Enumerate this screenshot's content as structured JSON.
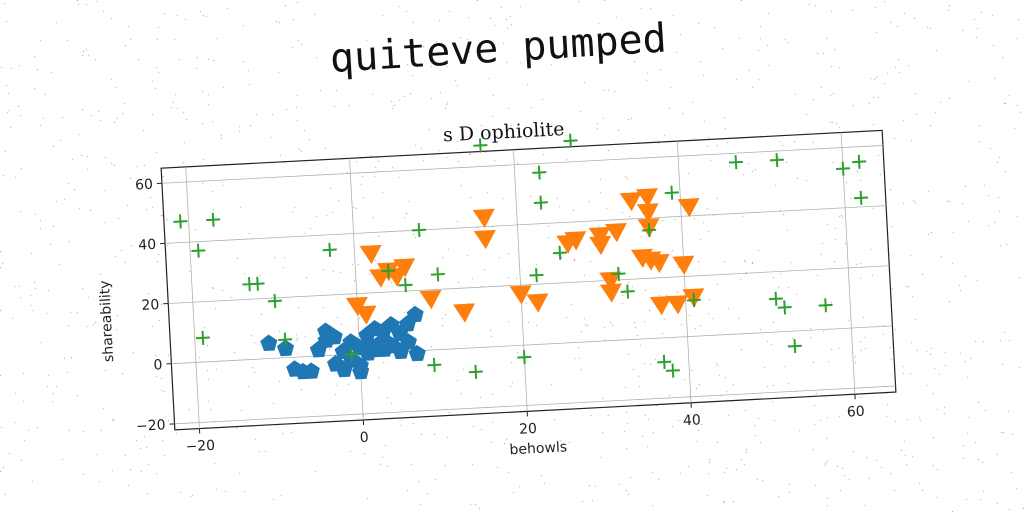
{
  "figure": {
    "suptitle": "quiteve pumped"
  },
  "colors": {
    "blue": "#1f77b4",
    "orange": "#ff7f0e",
    "green": "#2ca02c",
    "grid": "#b0b0b0",
    "axis": "#222222"
  },
  "chart_data": {
    "type": "scatter",
    "title": "s D ophiolite",
    "xlabel": "behowls",
    "ylabel": "shareability",
    "xlim": [
      -23,
      65
    ],
    "ylim": [
      -22,
      65
    ],
    "xticks": [
      -20,
      0,
      20,
      40,
      60
    ],
    "yticks": [
      -20,
      0,
      20,
      40,
      60
    ],
    "xtick_labels": [
      "−20",
      "0",
      "20",
      "40",
      "60"
    ],
    "ytick_labels": [
      "−20",
      "0",
      "20",
      "40",
      "60"
    ],
    "grid": true,
    "rotation_deg": -3,
    "series": [
      {
        "marker": "pentagon",
        "color": "#1f77b4",
        "points": [
          [
            -11,
            5
          ],
          [
            -9,
            3
          ],
          [
            -8,
            -4
          ],
          [
            -7,
            -5
          ],
          [
            -6,
            -5
          ],
          [
            -5,
            2
          ],
          [
            -4,
            5
          ],
          [
            -4,
            8
          ],
          [
            -3,
            6
          ],
          [
            -3,
            -3
          ],
          [
            -2,
            1
          ],
          [
            -1,
            -2
          ],
          [
            -1,
            4
          ],
          [
            0,
            -4
          ],
          [
            0,
            2
          ],
          [
            1,
            3
          ],
          [
            1,
            0
          ],
          [
            1,
            6
          ],
          [
            2,
            2
          ],
          [
            2,
            8
          ],
          [
            2,
            1
          ],
          [
            3,
            4
          ],
          [
            3,
            7
          ],
          [
            3,
            1
          ],
          [
            4,
            9
          ],
          [
            4,
            2
          ],
          [
            5,
            6
          ],
          [
            5,
            0
          ],
          [
            6,
            9
          ],
          [
            7,
            -1
          ],
          [
            7,
            12
          ],
          [
            -2,
            -5
          ],
          [
            0,
            -6
          ],
          [
            6,
            3
          ]
        ]
      },
      {
        "marker": "triangle-down",
        "color": "#ff7f0e",
        "points": [
          [
            0,
            16
          ],
          [
            1,
            13
          ],
          [
            2,
            33
          ],
          [
            3,
            25
          ],
          [
            4,
            27
          ],
          [
            5,
            25
          ],
          [
            6,
            28
          ],
          [
            9,
            17
          ],
          [
            13,
            12
          ],
          [
            16,
            43
          ],
          [
            16,
            36
          ],
          [
            20,
            17
          ],
          [
            22,
            14
          ],
          [
            26,
            33
          ],
          [
            27,
            34
          ],
          [
            30,
            35
          ],
          [
            30,
            32
          ],
          [
            31,
            20
          ],
          [
            31,
            16
          ],
          [
            32,
            36
          ],
          [
            34,
            46
          ],
          [
            36,
            47
          ],
          [
            36,
            42
          ],
          [
            36,
            37
          ],
          [
            35,
            27
          ],
          [
            36,
            26
          ],
          [
            37,
            25
          ],
          [
            37,
            11
          ],
          [
            39,
            11
          ],
          [
            40,
            24
          ],
          [
            41,
            13
          ],
          [
            41,
            43
          ]
        ]
      },
      {
        "marker": "plus",
        "color": "#2ca02c",
        "points": [
          [
            -21,
            47
          ],
          [
            -19,
            37
          ],
          [
            -19,
            8
          ],
          [
            -17,
            47
          ],
          [
            -13,
            25
          ],
          [
            -12,
            25
          ],
          [
            -10,
            19
          ],
          [
            -9,
            6
          ],
          [
            -3,
            35
          ],
          [
            -1,
            0
          ],
          [
            4,
            27
          ],
          [
            6,
            22
          ],
          [
            8,
            40
          ],
          [
            9,
            -5
          ],
          [
            10,
            25
          ],
          [
            14,
            -8
          ],
          [
            16,
            67
          ],
          [
            20,
            -4
          ],
          [
            22,
            23
          ],
          [
            23,
            57
          ],
          [
            23,
            47
          ],
          [
            25,
            30
          ],
          [
            27,
            67
          ],
          [
            32,
            22
          ],
          [
            33,
            16
          ],
          [
            36,
            36
          ],
          [
            37,
            -8
          ],
          [
            38,
            -11
          ],
          [
            39,
            48
          ],
          [
            41,
            12
          ],
          [
            47,
            57
          ],
          [
            51,
            11
          ],
          [
            52,
            57
          ],
          [
            52,
            8
          ],
          [
            53,
            -5
          ],
          [
            57,
            8
          ],
          [
            60,
            53
          ],
          [
            62,
            55
          ],
          [
            62,
            43
          ]
        ]
      }
    ]
  }
}
